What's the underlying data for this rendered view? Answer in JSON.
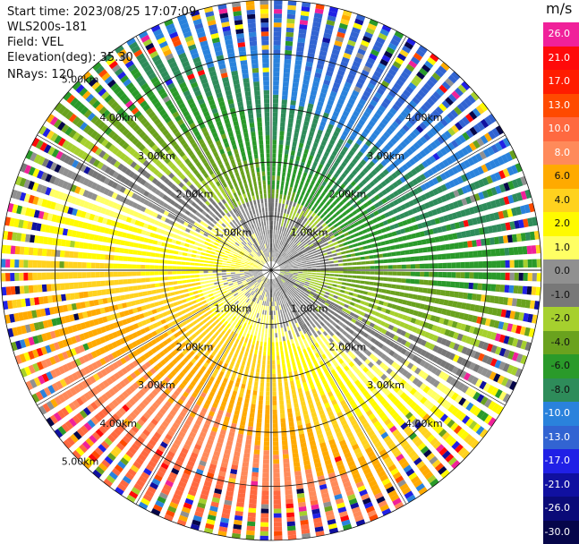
{
  "header": {
    "start_time": "Start time: 2023/08/25 17:07:09",
    "instrument": "WLS200s-181",
    "field": "Field: VEL",
    "elevation": "Elevation(deg): 35.30",
    "nrays": "NRays: 120"
  },
  "colorbar": {
    "unit": "m/s",
    "ticks": [
      "26.0",
      "21.0",
      "17.0",
      "13.0",
      "10.0",
      "8.0",
      "6.0",
      "4.0",
      "2.0",
      "1.0",
      "0.0",
      "-1.0",
      "-2.0",
      "-4.0",
      "-6.0",
      "-8.0",
      "-10.0",
      "-13.0",
      "-17.0",
      "-21.0",
      "-26.0",
      "-30.0"
    ],
    "colors": [
      "#f0219a",
      "#ff0a0a",
      "#ff1c00",
      "#ff4a00",
      "#ff6940",
      "#ff8a5a",
      "#ffaa00",
      "#ffd21e",
      "#fffa00",
      "#ffff64",
      "#909090",
      "#787878",
      "#a6d02e",
      "#6aa21e",
      "#2a9a2a",
      "#2e8c5a",
      "#2a82dc",
      "#3264d2",
      "#2020e6",
      "#1010a0",
      "#0a0a78",
      "#06064a"
    ]
  },
  "range_rings": {
    "labels": [
      "1.00km",
      "2.00km",
      "3.00km",
      "4.00km",
      "5.00km"
    ],
    "radii_km": [
      1,
      2,
      3,
      4,
      5
    ]
  },
  "ppi": {
    "n_rays": 120,
    "max_range_km": 5.0
  }
}
